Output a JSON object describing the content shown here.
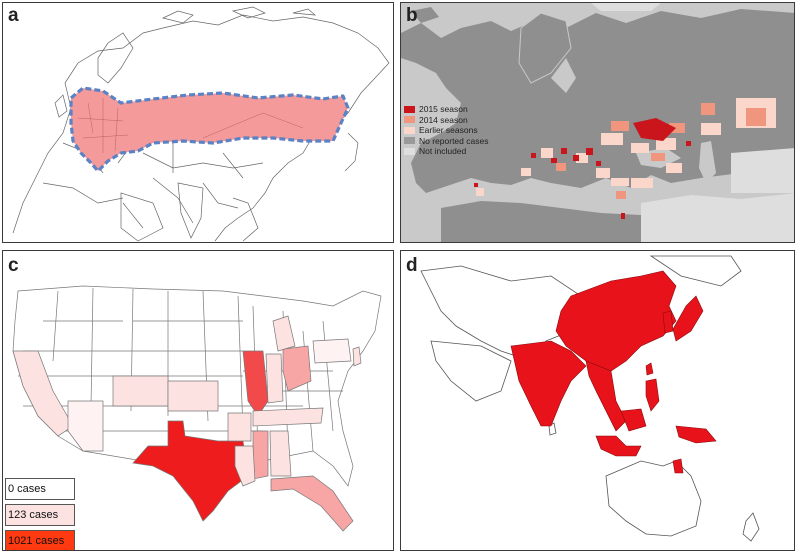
{
  "panels": {
    "a": {
      "label": "a"
    },
    "b": {
      "label": "b"
    },
    "c": {
      "label": "c"
    },
    "d": {
      "label": "d"
    }
  },
  "legend_b": {
    "items": [
      {
        "label": "2015 season",
        "color": "#c9151b"
      },
      {
        "label": "2014 season",
        "color": "#f0957e"
      },
      {
        "label": "Earlier seasons",
        "color": "#fbd7cb"
      },
      {
        "label": "No reported cases",
        "color": "#9a9a9a"
      },
      {
        "label": "Not included",
        "color": "#dedede"
      }
    ]
  },
  "legend_c": {
    "items": [
      {
        "label": "0 cases",
        "color": "#ffffff"
      },
      {
        "label": "123 cases",
        "color": "#fde2e2"
      },
      {
        "label": "1021 cases",
        "color": "#ff3a10"
      }
    ]
  },
  "colors": {
    "region_fill_a": "#f59a9a",
    "region_outline_a": "#5b82c4",
    "land_b": "#8f8f8f",
    "not_included_b": "#dedede",
    "sea_b": "#c9c9c9",
    "endemic_d": "#e8121a",
    "texas_c": "#ee1c1c",
    "illinois_c": "#f24a4a"
  }
}
